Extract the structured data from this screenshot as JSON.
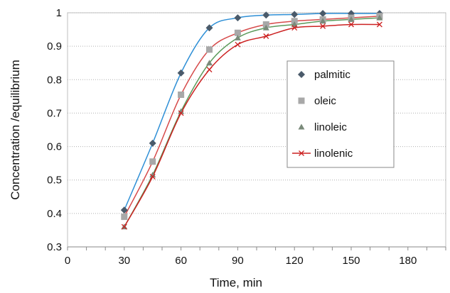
{
  "chart_data": {
    "type": "line",
    "title": "",
    "xlabel": "Time, min",
    "ylabel": "Concentration /equilibrium",
    "xlim": [
      0,
      200
    ],
    "ylim": [
      0.3,
      1.0
    ],
    "x_ticks": [
      "0",
      "30",
      "60",
      "90",
      "120",
      "150",
      "180"
    ],
    "y_ticks": [
      "0.3",
      "0.4",
      "0.5",
      "0.6",
      "0.7",
      "0.8",
      "0.9",
      "1"
    ],
    "x_tick_values": [
      0,
      30,
      60,
      90,
      120,
      150,
      180
    ],
    "y_tick_values": [
      0.3,
      0.4,
      0.5,
      0.6,
      0.7,
      0.8,
      0.9,
      1.0
    ],
    "grid": "horizontal",
    "legend_position": "right",
    "x": [
      30,
      45,
      60,
      75,
      90,
      105,
      120,
      135,
      150,
      165
    ],
    "series": [
      {
        "name": "palmitic",
        "marker": "diamond",
        "marker_color": "#4a5a6a",
        "line_color": "#2e8fd6",
        "values": [
          0.41,
          0.61,
          0.82,
          0.955,
          0.985,
          0.993,
          0.995,
          0.998,
          0.998,
          0.998
        ]
      },
      {
        "name": "oleic",
        "marker": "square",
        "marker_color": "#a8a8a8",
        "line_color": "#d64a4a",
        "values": [
          0.39,
          0.555,
          0.755,
          0.89,
          0.94,
          0.965,
          0.975,
          0.98,
          0.985,
          0.99
        ]
      },
      {
        "name": "linoleic",
        "marker": "triangle",
        "marker_color": "#7a8a7a",
        "line_color": "#5a9a5a",
        "values": [
          0.36,
          0.515,
          0.705,
          0.85,
          0.925,
          0.955,
          0.965,
          0.975,
          0.98,
          0.985
        ]
      },
      {
        "name": "linolenic",
        "marker": "cross",
        "marker_color": "#cc2222",
        "line_color": "#cc2222",
        "values": [
          0.36,
          0.51,
          0.7,
          0.83,
          0.905,
          0.93,
          0.955,
          0.96,
          0.965,
          0.965
        ]
      }
    ]
  }
}
